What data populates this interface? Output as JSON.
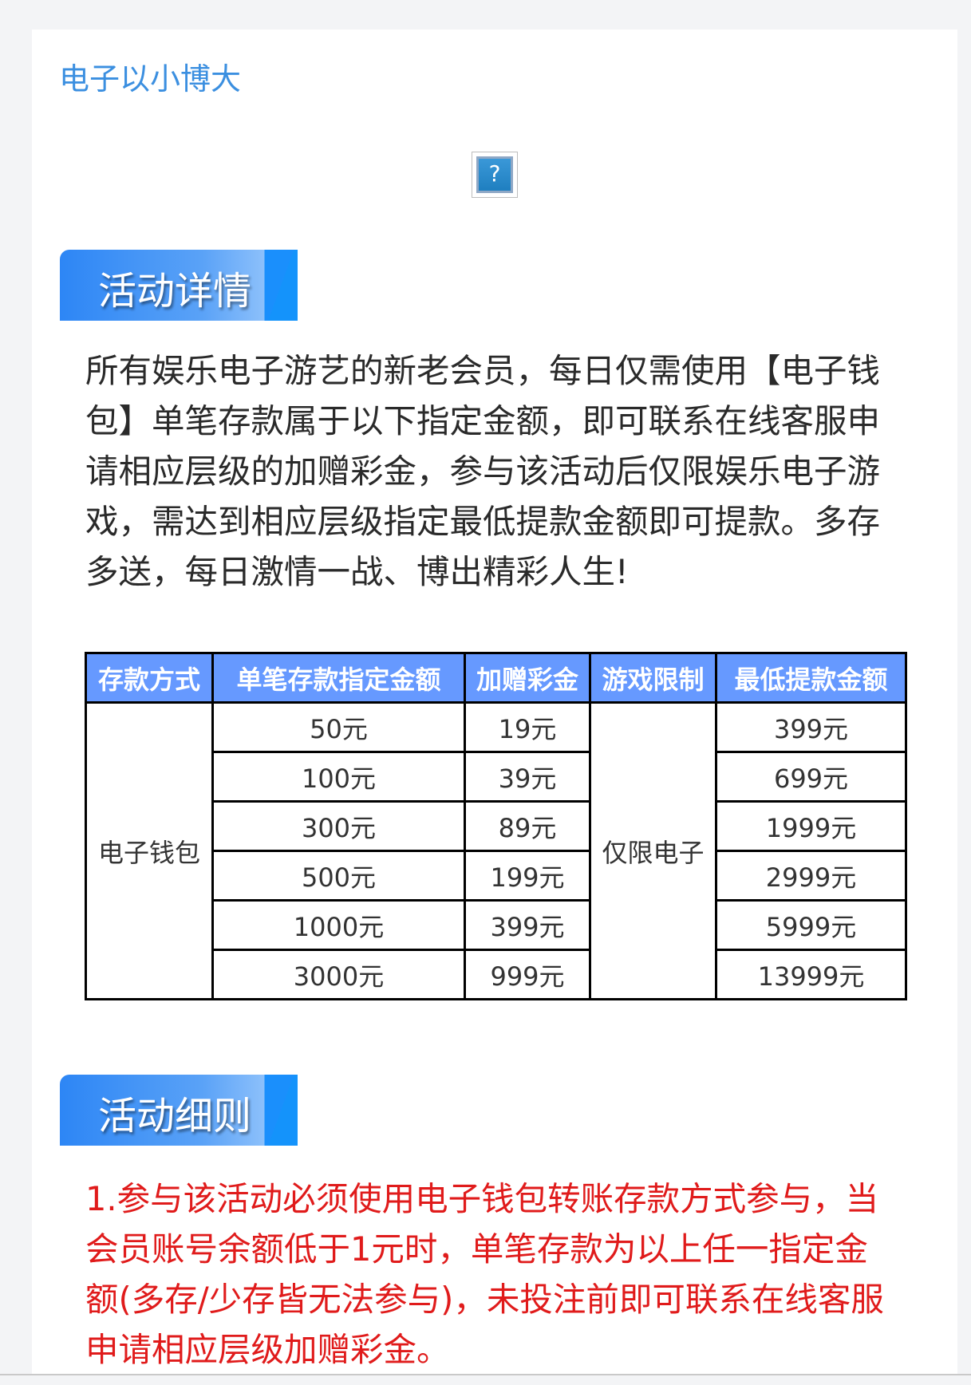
{
  "page_title": "电子以小博大",
  "image_placeholder_icon": "broken-image-question-icon",
  "sections": {
    "details_heading": "活动详情",
    "details_text": "所有娱乐电子游艺的新老会员，每日仅需使用【电子钱包】单笔存款属于以下指定金额，即可联系在线客服申请相应层级的加赠彩金，参与该活动后仅限娱乐电子游戏，需达到相应层级指定最低提款金额即可提款。多存多送，每日激情一战、博出精彩人生!",
    "rules_heading": "活动细则",
    "rules_text": "1.参与该活动必须使用电子钱包转账存款方式参与，当会员账号余额低于1元时，单笔存款为以上任一指定金额(多存/少存皆无法参与)，未投注前即可联系在线客服申请相应层级加赠彩金。"
  },
  "table": {
    "headers": [
      "存款方式",
      "单笔存款指定金额",
      "加赠彩金",
      "游戏限制",
      "最低提款金额"
    ],
    "method": "电子钱包",
    "restriction": "仅限电子",
    "rows": [
      {
        "deposit": "50元",
        "bonus": "19元",
        "min_withdraw": "399元"
      },
      {
        "deposit": "100元",
        "bonus": "39元",
        "min_withdraw": "699元"
      },
      {
        "deposit": "300元",
        "bonus": "89元",
        "min_withdraw": "1999元"
      },
      {
        "deposit": "500元",
        "bonus": "199元",
        "min_withdraw": "2999元"
      },
      {
        "deposit": "1000元",
        "bonus": "399元",
        "min_withdraw": "5999元"
      },
      {
        "deposit": "3000元",
        "bonus": "999元",
        "min_withdraw": "13999元"
      }
    ]
  },
  "colors": {
    "title": "#3b8fe0",
    "table_header": "#6699ff",
    "rules_text": "#e01b1b"
  }
}
